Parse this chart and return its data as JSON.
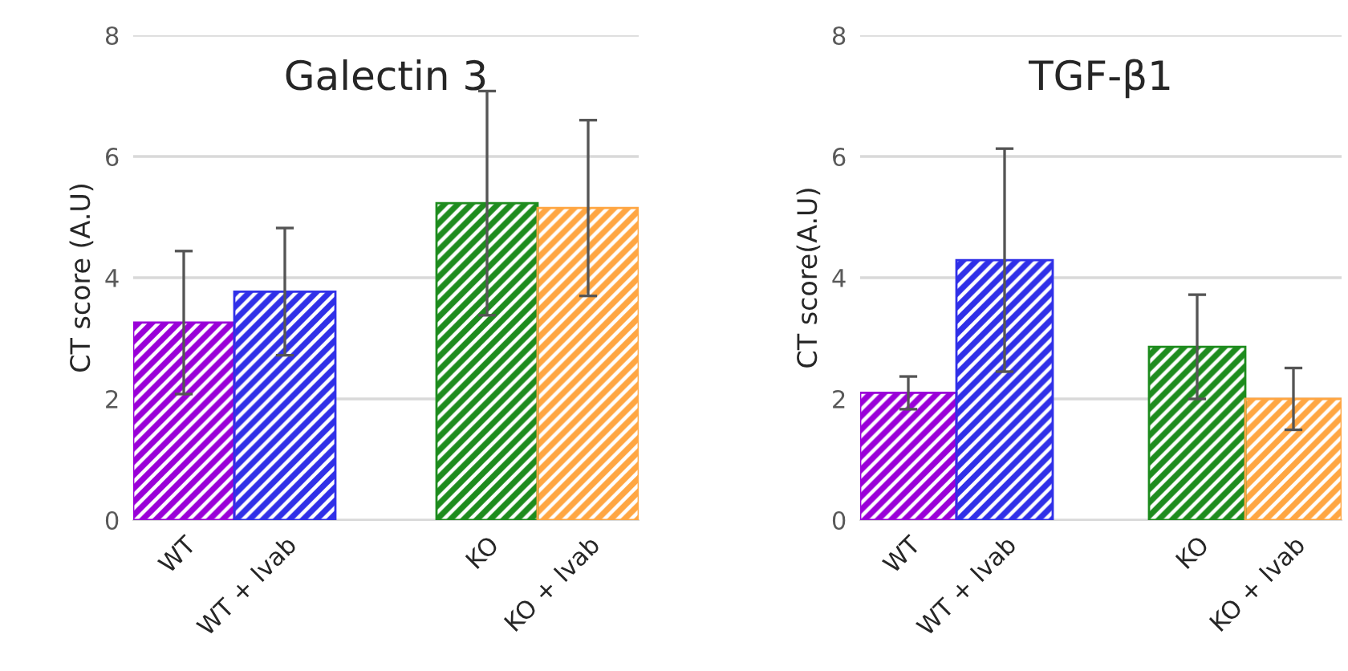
{
  "chart_data": [
    {
      "type": "bar",
      "title": "Galectin 3",
      "ylabel": "CT score (A.U)",
      "categories": [
        "WT",
        "WT + Ivab",
        null,
        "KO",
        "KO + Ivab"
      ],
      "values": [
        3.26,
        3.77,
        null,
        5.23,
        5.15
      ],
      "errors": [
        1.18,
        1.05,
        null,
        1.85,
        1.45
      ],
      "colors": [
        "#9a00d8",
        "#3030e8",
        null,
        "#1e8c1e",
        "#ffa642"
      ],
      "ylim": [
        0,
        8
      ],
      "yticks": [
        0,
        2,
        4,
        6,
        8
      ],
      "grid": "y"
    },
    {
      "type": "bar",
      "title": "TGF-β1",
      "ylabel": "CT score(A.U)",
      "categories": [
        "WT",
        "WT + Ivab",
        null,
        "KO",
        "KO + Ivab"
      ],
      "values": [
        2.1,
        4.29,
        null,
        2.86,
        2.0
      ],
      "errors": [
        0.27,
        1.84,
        null,
        0.86,
        0.51
      ],
      "colors": [
        "#9a00d8",
        "#3030e8",
        null,
        "#1e8c1e",
        "#ffa642"
      ],
      "ylim": [
        0,
        8
      ],
      "yticks": [
        0,
        2,
        4,
        6,
        8
      ],
      "grid": "y"
    }
  ]
}
